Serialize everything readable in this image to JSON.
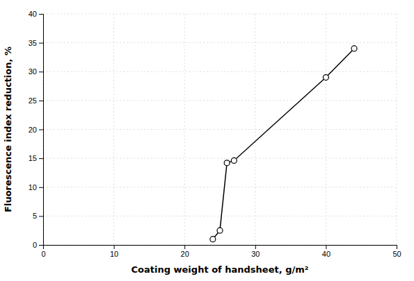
{
  "chart_data": {
    "type": "line",
    "xlabel": "Coating weight of handsheet, g/m²",
    "ylabel": "Fluorescence index reduction, %",
    "x": [
      24.0,
      25.0,
      26.0,
      27.0,
      40.0,
      44.0
    ],
    "values": [
      1.0,
      2.5,
      14.2,
      14.6,
      29.0,
      34.0
    ],
    "color": "#000000",
    "marker": "circle",
    "xlim": [
      0,
      50
    ],
    "ylim": [
      0,
      40
    ],
    "xticks": [
      0,
      10,
      20,
      30,
      40,
      50
    ],
    "yticks": [
      0,
      5,
      10,
      15,
      20,
      25,
      30,
      35,
      40
    ],
    "grid": true
  }
}
